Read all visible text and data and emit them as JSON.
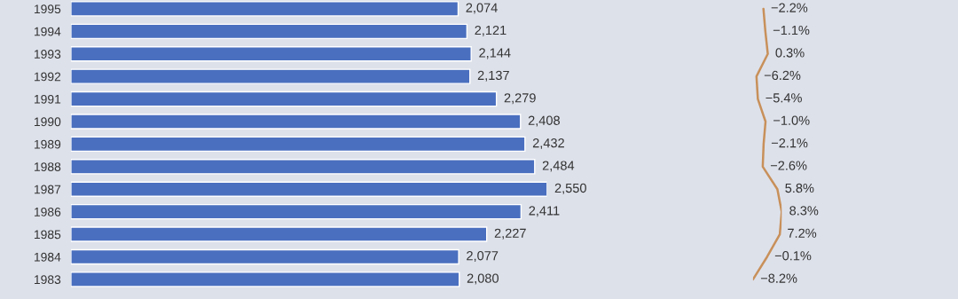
{
  "chart_data": [
    {
      "type": "bar",
      "orientation": "horizontal",
      "categories": [
        "1995",
        "1994",
        "1993",
        "1992",
        "1991",
        "1990",
        "1989",
        "1988",
        "1987",
        "1986",
        "1985",
        "1984",
        "1983"
      ],
      "data_labels": true,
      "color": "#4a6fbf",
      "values": [
        2074,
        2121,
        2144,
        2137,
        2279,
        2408,
        2432,
        2484,
        2550,
        2411,
        2227,
        2077,
        2080
      ],
      "value_labels": [
        "2,074",
        "2,121",
        "2,144",
        "2,137",
        "2,279",
        "2,408",
        "2,432",
        "2,484",
        "2,550",
        "2,411",
        "2,227",
        "2,077",
        "2,080"
      ]
    },
    {
      "type": "line",
      "orientation": "horizontal",
      "categories": [
        "1995",
        "1994",
        "1993",
        "1992",
        "1991",
        "1990",
        "1989",
        "1988",
        "1987",
        "1986",
        "1985",
        "1984",
        "1983"
      ],
      "data_labels": true,
      "color": "#c8905a",
      "tick_labels": false,
      "values": [
        -2.2,
        -1.1,
        0.3,
        -6.2,
        -5.4,
        -1.0,
        -2.1,
        -2.6,
        5.8,
        8.3,
        7.2,
        -0.1,
        -8.2
      ],
      "value_labels": [
        "−2.2%",
        "−1.1%",
        "0.3%",
        "−6.2%",
        "−5.4%",
        "−1.0%",
        "−2.1%",
        "−2.6%",
        "5.8%",
        "8.3%",
        "7.2%",
        "−0.1%",
        "−8.2%"
      ]
    }
  ]
}
